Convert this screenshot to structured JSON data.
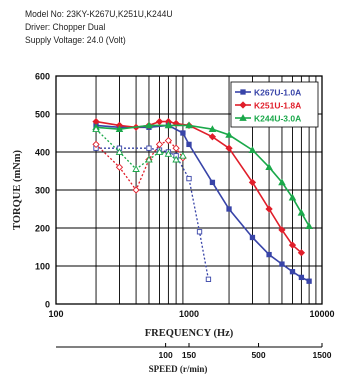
{
  "header": {
    "model": "Model No: 23KY-K267U,K251U,K244U",
    "driver": "Driver: Chopper Dual",
    "voltage": "Supply Voltage: 24.0 (Volt)"
  },
  "chart_data": {
    "type": "line",
    "xlabel": "FREQUENCY (Hz)",
    "ylabel": "TORQUE (mNm)",
    "xscale": "log",
    "xlim": [
      100,
      10000
    ],
    "ylim": [
      0,
      600
    ],
    "xticks": [
      100,
      1000,
      10000
    ],
    "yticks": [
      0,
      100,
      200,
      300,
      400,
      500,
      600
    ],
    "grid": true,
    "legend_position": "top-right",
    "secondary_axis": {
      "label": "SPEED (r/min)",
      "ticks": [
        {
          "label": "100",
          "hz": 667
        },
        {
          "label": "150",
          "hz": 1000
        },
        {
          "label": "500",
          "hz": 3333
        },
        {
          "label": "1500",
          "hz": 10000
        }
      ]
    },
    "series": [
      {
        "name": "K267U-1.0A",
        "color": "#3844a8",
        "marker": "square",
        "pullout": {
          "x": [
            200,
            300,
            500,
            700,
            900,
            1000,
            1500,
            2000,
            3000,
            4000,
            5000,
            6000,
            7000,
            8000
          ],
          "y": [
            470,
            465,
            465,
            470,
            450,
            420,
            320,
            250,
            175,
            130,
            105,
            85,
            70,
            60
          ]
        },
        "pullin": {
          "x": [
            200,
            300,
            500,
            600,
            700,
            800,
            1000,
            1200,
            1400
          ],
          "y": [
            410,
            410,
            410,
            405,
            400,
            390,
            330,
            190,
            65
          ]
        }
      },
      {
        "name": "K251U-1.8A",
        "color": "#e01e2a",
        "marker": "diamond",
        "pullout": {
          "x": [
            200,
            300,
            400,
            500,
            600,
            700,
            800,
            1000,
            1500,
            2000,
            3000,
            4000,
            5000,
            6000,
            7000
          ],
          "y": [
            480,
            470,
            465,
            470,
            480,
            480,
            475,
            470,
            440,
            410,
            320,
            250,
            195,
            155,
            135
          ]
        },
        "pullin": {
          "x": [
            200,
            300,
            400,
            500,
            600,
            700,
            800,
            900
          ],
          "y": [
            420,
            360,
            300,
            380,
            420,
            430,
            410,
            385
          ]
        }
      },
      {
        "name": "K244U-3.0A",
        "color": "#1aa84a",
        "marker": "triangle",
        "pullout": {
          "x": [
            200,
            300,
            500,
            700,
            1000,
            1500,
            2000,
            3000,
            4000,
            5000,
            6000,
            7000,
            8000
          ],
          "y": [
            465,
            460,
            470,
            470,
            470,
            460,
            445,
            405,
            360,
            320,
            280,
            240,
            205
          ]
        },
        "pullin": {
          "x": [
            200,
            300,
            400,
            500,
            600,
            700,
            800,
            900
          ],
          "y": [
            460,
            400,
            355,
            380,
            400,
            395,
            380,
            390
          ]
        }
      }
    ]
  }
}
